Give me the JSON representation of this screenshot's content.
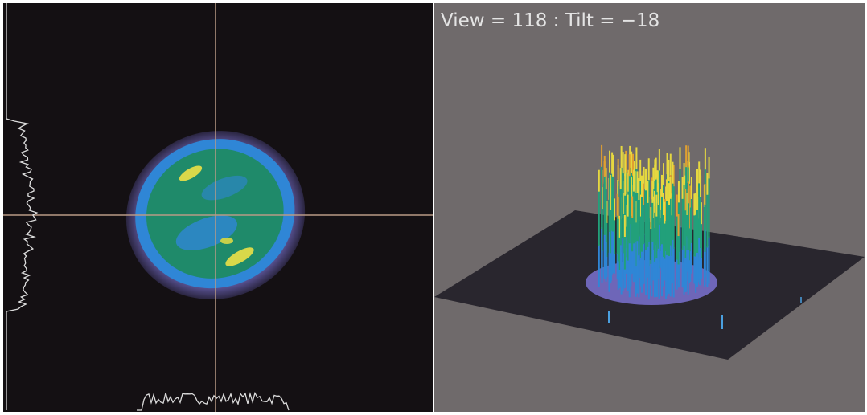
{
  "header": {
    "view_label": "View = 118 : Tilt = −18"
  }
}
